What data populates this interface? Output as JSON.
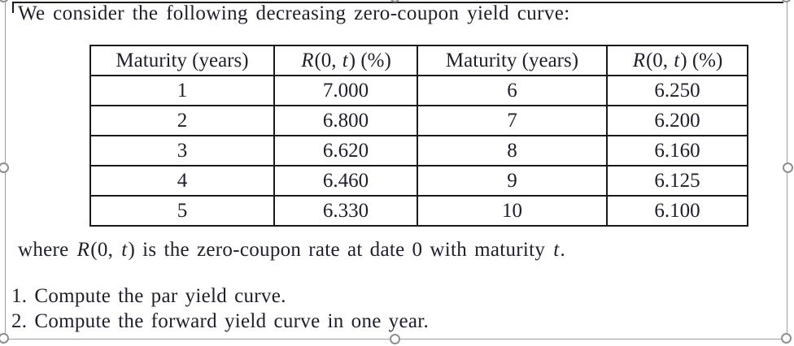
{
  "colors": {
    "text": "#1e1e30",
    "table_border": "#191919",
    "selection_border": "#9c9c9c",
    "handle_ring": "#8f8f8f",
    "background": "#ffffff"
  },
  "exercise": {
    "intro": "We consider the following decreasing zero-coupon yield curve:",
    "table": {
      "headers": [
        {
          "segments": [
            {
              "t": "Maturity (years)",
              "i": false
            }
          ]
        },
        {
          "segments": [
            {
              "t": "R",
              "i": true
            },
            {
              "t": "(0, ",
              "i": false
            },
            {
              "t": "t",
              "i": true
            },
            {
              "t": ") (%)",
              "i": false
            }
          ]
        },
        {
          "segments": [
            {
              "t": "Maturity (years)",
              "i": false
            }
          ]
        },
        {
          "segments": [
            {
              "t": "R",
              "i": true
            },
            {
              "t": "(0, ",
              "i": false
            },
            {
              "t": "t",
              "i": true
            },
            {
              "t": ") (%)",
              "i": false
            }
          ]
        }
      ],
      "rows": [
        [
          "1",
          "7.000",
          "6",
          "6.250"
        ],
        [
          "2",
          "6.800",
          "7",
          "6.200"
        ],
        [
          "3",
          "6.620",
          "8",
          "6.160"
        ],
        [
          "4",
          "6.460",
          "9",
          "6.125"
        ],
        [
          "5",
          "6.330",
          "10",
          "6.100"
        ]
      ]
    },
    "where_note": {
      "segments": [
        {
          "t": "where ",
          "i": false
        },
        {
          "t": "R",
          "i": true
        },
        {
          "t": "(0, ",
          "i": false
        },
        {
          "t": "t",
          "i": true
        },
        {
          "t": ") is the zero-coupon rate at date 0 with maturity ",
          "i": false
        },
        {
          "t": "t",
          "i": true
        },
        {
          "t": ".",
          "i": false
        }
      ]
    },
    "questions": [
      {
        "number": "1.",
        "text": "Compute the par yield curve."
      },
      {
        "number": "2.",
        "text": "Compute the forward yield curve in one year."
      }
    ]
  },
  "chart_data": {
    "type": "table",
    "title": "Decreasing zero-coupon yield curve",
    "columns": [
      "Maturity (years)",
      "R(0, t) (%)"
    ],
    "x": [
      1,
      2,
      3,
      4,
      5,
      6,
      7,
      8,
      9,
      10
    ],
    "values": [
      7.0,
      6.8,
      6.62,
      6.46,
      6.33,
      6.25,
      6.2,
      6.16,
      6.125,
      6.1
    ]
  },
  "selection": {
    "handles": [
      "top-left",
      "top-center",
      "top-right",
      "middle-left",
      "middle-right",
      "bottom-left",
      "bottom-center",
      "bottom-right"
    ]
  }
}
